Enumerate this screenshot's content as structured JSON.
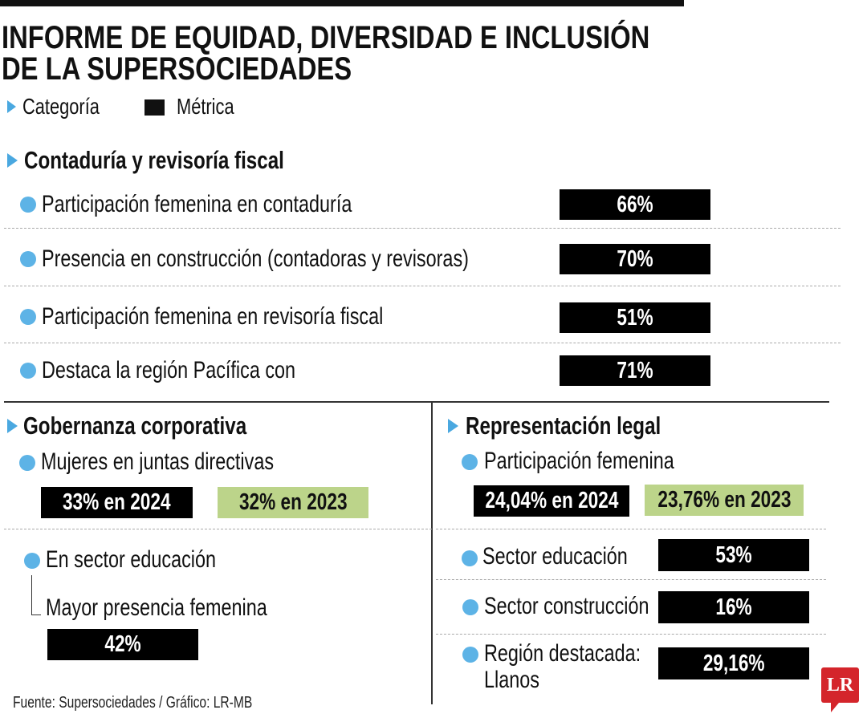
{
  "title": {
    "line1": "INFORME DE EQUIDAD, DIVERSIDAD E INCLUSIÓN",
    "line2": "DE LA SUPERSOCIEDADES"
  },
  "legend": {
    "category": "Categoría",
    "metric": "Métrica"
  },
  "colors": {
    "bullet": "#5db3e6",
    "triangle": "#4aa8e0",
    "metric_box": "#000000",
    "previous_year_box": "#bcd48a",
    "logo": "#d4252b"
  },
  "contaduria": {
    "heading": "Contaduría y revisoría fiscal",
    "rows": [
      {
        "label": "Participación femenina en contaduría",
        "value": "66%"
      },
      {
        "label": "Presencia en construcción  (contadoras y revisoras)",
        "value": "70%"
      },
      {
        "label": "Participación femenina en revisoría fiscal",
        "value": "51%"
      },
      {
        "label": "Destaca la región Pacífica con",
        "value": "71%"
      }
    ]
  },
  "gobernanza": {
    "heading": "Gobernanza corporativa",
    "juntas_label": "Mujeres en juntas directivas",
    "value_2024": "33% en 2024",
    "value_2023": "32% en 2023",
    "educacion_label": "En sector educación",
    "mayor_label": "Mayor presencia femenina",
    "mayor_value": "42%"
  },
  "representacion": {
    "heading": "Representación legal",
    "participacion_label": "Participación femenina",
    "value_2024": "24,04% en 2024",
    "value_2023": "23,76% en 2023",
    "rows": [
      {
        "label": "Sector educación",
        "value": "53%"
      },
      {
        "label": "Sector construcción",
        "value": "16%"
      },
      {
        "label": "Región destacada:",
        "label2": "Llanos",
        "value": "29,16%"
      }
    ]
  },
  "footer": "Fuente: Supersociedades / Gráfico: LR-MB",
  "logo": "LR"
}
